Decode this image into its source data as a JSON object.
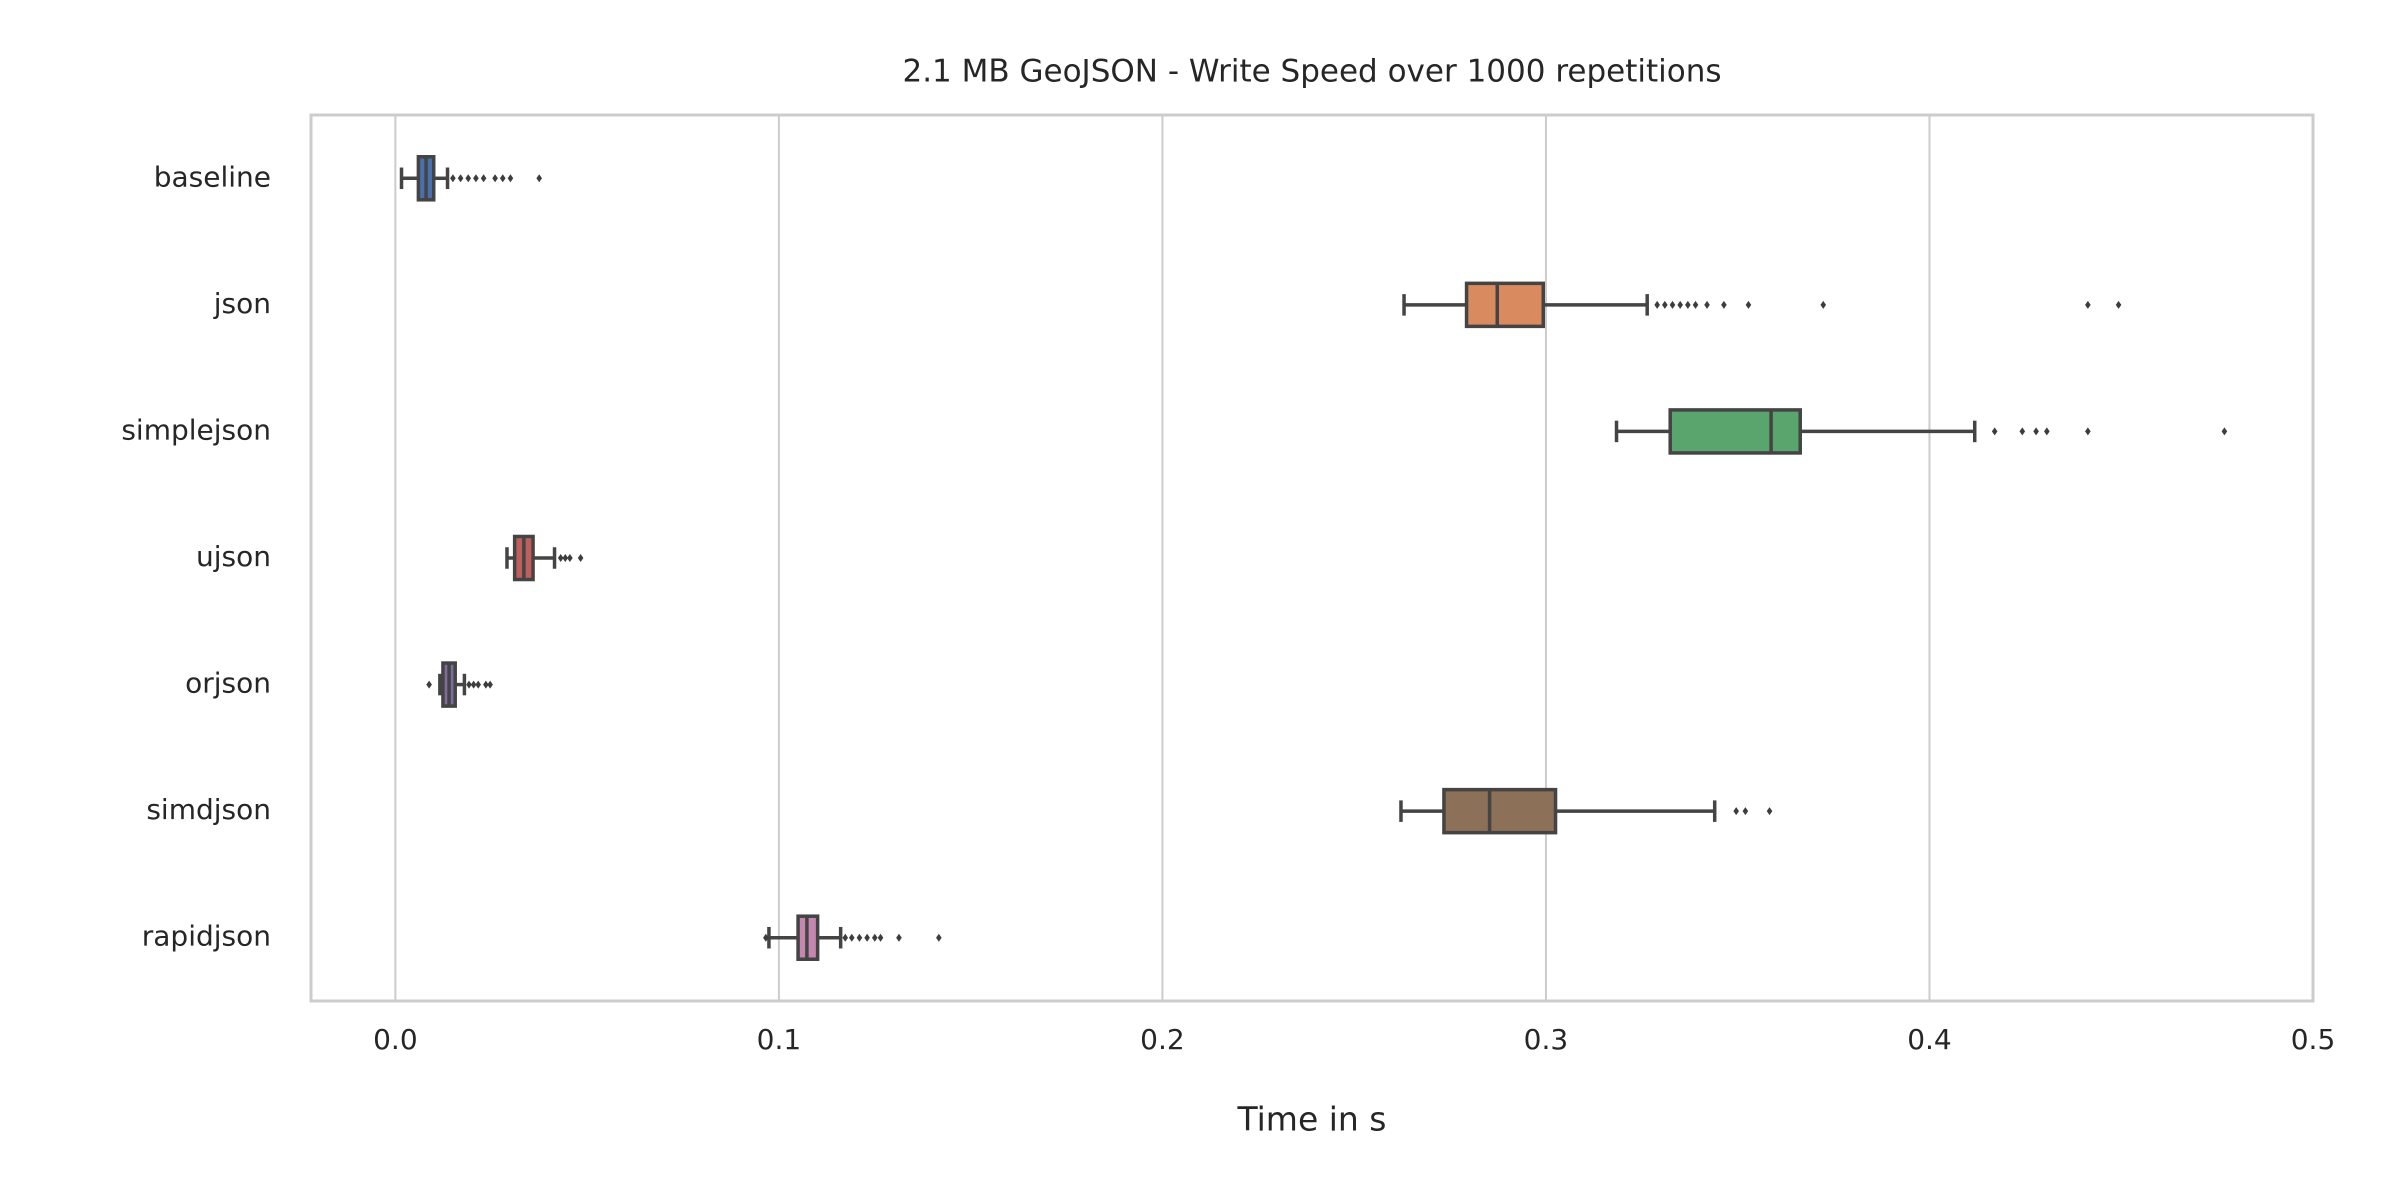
{
  "chart_data": {
    "type": "boxplot",
    "title": "2.1 MB GeoJSON - Write Speed over 1000 repetitions",
    "x_label": "Time in s",
    "orientation": "horizontal",
    "categories": [
      "baseline",
      "json",
      "simplejson",
      "ujson",
      "orjson",
      "simdjson",
      "rapidjson"
    ],
    "colors": [
      "#4a6fae",
      "#d98b5f",
      "#5aa46e",
      "#c05e5e",
      "#7d6c9c",
      "#8c7058",
      "#c586b0"
    ],
    "boxes": [
      {
        "low": 0.0016,
        "q1": 0.006,
        "median": 0.008,
        "q3": 0.01,
        "high": 0.0136,
        "outliers": [
          0.015,
          0.017,
          0.019,
          0.021,
          0.023,
          0.026,
          0.028,
          0.03,
          0.0375
        ]
      },
      {
        "low": 0.263,
        "q1": 0.2793,
        "median": 0.2873,
        "q3": 0.2993,
        "high": 0.3264,
        "outliers": [
          0.329,
          0.331,
          0.333,
          0.335,
          0.337,
          0.339,
          0.342,
          0.3464,
          0.3528,
          0.3723,
          0.4413,
          0.4493
        ]
      },
      {
        "low": 0.3184,
        "q1": 0.3324,
        "median": 0.3587,
        "q3": 0.3663,
        "high": 0.4118,
        "outliers": [
          0.417,
          0.4242,
          0.4278,
          0.4306,
          0.4413,
          0.4769
        ]
      },
      {
        "low": 0.0291,
        "q1": 0.0311,
        "median": 0.0335,
        "q3": 0.0359,
        "high": 0.0415,
        "outliers": [
          0.0431,
          0.0443,
          0.0455,
          0.0483
        ]
      },
      {
        "low": 0.0116,
        "q1": 0.0124,
        "median": 0.014,
        "q3": 0.0156,
        "high": 0.018,
        "outliers": [
          0.0088,
          0.0192,
          0.0204,
          0.0216,
          0.0236,
          0.0247
        ]
      },
      {
        "low": 0.2622,
        "q1": 0.2734,
        "median": 0.2853,
        "q3": 0.3025,
        "high": 0.344,
        "outliers": [
          0.3496,
          0.352,
          0.3583
        ]
      },
      {
        "low": 0.0974,
        "q1": 0.105,
        "median": 0.1073,
        "q3": 0.1101,
        "high": 0.1161,
        "outliers": [
          0.0966,
          0.1173,
          0.119,
          0.121,
          0.123,
          0.125,
          0.1265,
          0.1313,
          0.1417
        ]
      }
    ],
    "xlim": [
      -0.022,
      0.5
    ],
    "xticks": [
      {
        "value": 0,
        "label": "0.0"
      },
      0.1,
      0.2,
      0.3,
      0.4,
      0.5
    ],
    "grid": true
  }
}
